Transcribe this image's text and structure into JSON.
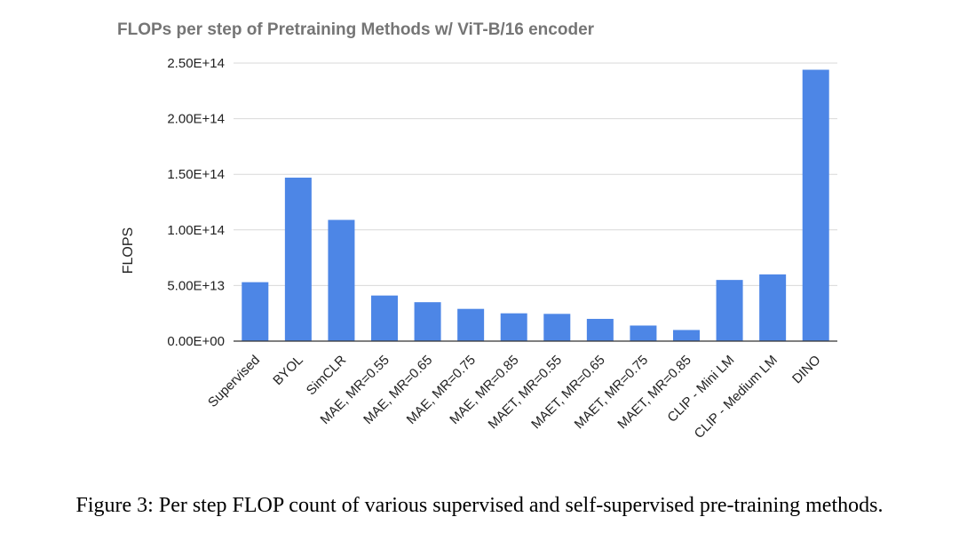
{
  "chart_data": {
    "type": "bar",
    "title": "FLOPs per step of Pretraining Methods w/ ViT-B/16 encoder",
    "xlabel": "",
    "ylabel": "FLOPS",
    "categories": [
      "Supervised",
      "BYOL",
      "SimCLR",
      "MAE, MR=0.55",
      "MAE, MR=0.65",
      "MAE, MR=0.75",
      "MAE, MR=0.85",
      "MAET, MR=0.55",
      "MAET, MR=0.65",
      "MAET, MR=0.75",
      "MAET, MR=0.85",
      "CLIP - Mini LM",
      "CLIP - Medium LM",
      "DINO"
    ],
    "values": [
      53000000000000.0,
      147000000000000.0,
      109000000000000.0,
      41000000000000.0,
      35000000000000.0,
      29000000000000.0,
      25000000000000.0,
      24500000000000.0,
      20000000000000.0,
      14000000000000.0,
      10000000000000.0,
      55000000000000.0,
      60000000000000.0,
      244000000000000.0
    ],
    "ylim": [
      0,
      250000000000000.0
    ],
    "yticks": [
      0,
      50000000000000.0,
      100000000000000.0,
      150000000000000.0,
      200000000000000.0,
      250000000000000.0
    ],
    "ytick_labels": [
      "0.00E+00",
      "5.00E+13",
      "1.00E+14",
      "1.50E+14",
      "2.00E+14",
      "2.50E+14"
    ],
    "grid": true,
    "legend": "none",
    "bar_color": "#4d86e6"
  },
  "caption": "Figure 3: Per step FLOP count of various supervised and self-supervised pre-training methods."
}
